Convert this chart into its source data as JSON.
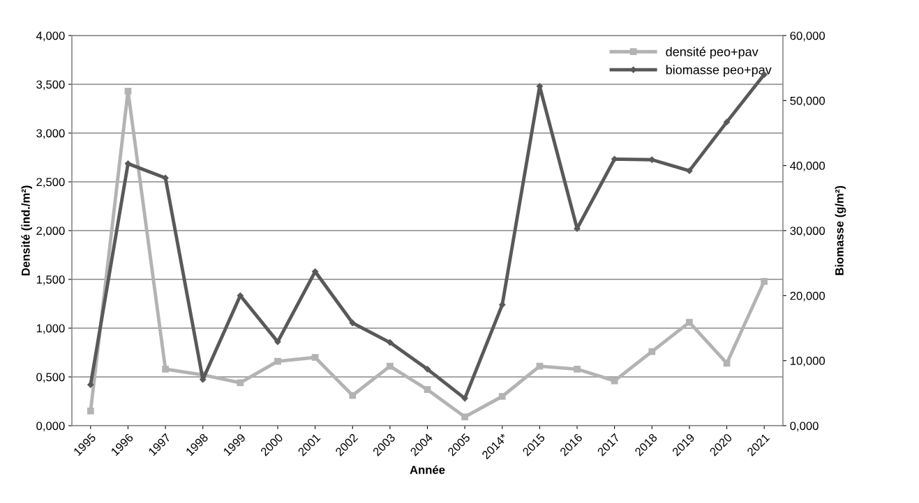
{
  "chart_data": {
    "type": "line",
    "xlabel": "Année",
    "ylabel": "Densité (ind./m²)",
    "y2label": "Biomasse (g/m²)",
    "categories": [
      "1995",
      "1996",
      "1997",
      "1998",
      "1999",
      "2000",
      "2001",
      "2002",
      "2003",
      "2004",
      "2005",
      "2014*",
      "2015",
      "2016",
      "2017",
      "2018",
      "2019",
      "2020",
      "2021"
    ],
    "series": [
      {
        "name": "densité peo+pav",
        "color": "#b3b3b3",
        "marker": "square",
        "values": [
          0.15,
          3.43,
          0.58,
          0.52,
          0.44,
          0.66,
          0.7,
          0.31,
          0.61,
          0.37,
          0.09,
          0.3,
          0.61,
          0.58,
          0.46,
          0.76,
          1.06,
          0.64,
          1.48
        ]
      },
      {
        "name": "biomasse peo+pav",
        "color": "#595959",
        "marker": "diamond",
        "axis": "y2",
        "values": [
          6.3,
          40.3,
          38.1,
          7.1,
          20.0,
          12.9,
          23.7,
          15.8,
          12.8,
          8.7,
          4.2,
          18.6,
          52.2,
          30.3,
          41.0,
          40.9,
          39.2,
          46.7,
          54.0
        ]
      }
    ],
    "ylim": [
      0,
      4
    ],
    "yticks": [
      {
        "value": 0,
        "label": "0,000"
      },
      {
        "value": 0.5,
        "label": "0,500"
      },
      {
        "value": 1,
        "label": "1,000"
      },
      {
        "value": 1.5,
        "label": "1,500"
      },
      {
        "value": 2,
        "label": "2,000"
      },
      {
        "value": 2.5,
        "label": "2,500"
      },
      {
        "value": 3,
        "label": "3,000"
      },
      {
        "value": 3.5,
        "label": "3,500"
      },
      {
        "value": 4,
        "label": "4,000"
      }
    ],
    "y2lim": [
      0,
      60
    ],
    "y2ticks": [
      {
        "value": 0,
        "label": "0,000"
      },
      {
        "value": 10,
        "label": "10,000"
      },
      {
        "value": 20,
        "label": "20,000"
      },
      {
        "value": 30,
        "label": "30,000"
      },
      {
        "value": 40,
        "label": "40,000"
      },
      {
        "value": 50,
        "label": "50,000"
      },
      {
        "value": 60,
        "label": "60,000"
      }
    ],
    "grid": "y",
    "legend": "top right",
    "line_style": "solid"
  }
}
